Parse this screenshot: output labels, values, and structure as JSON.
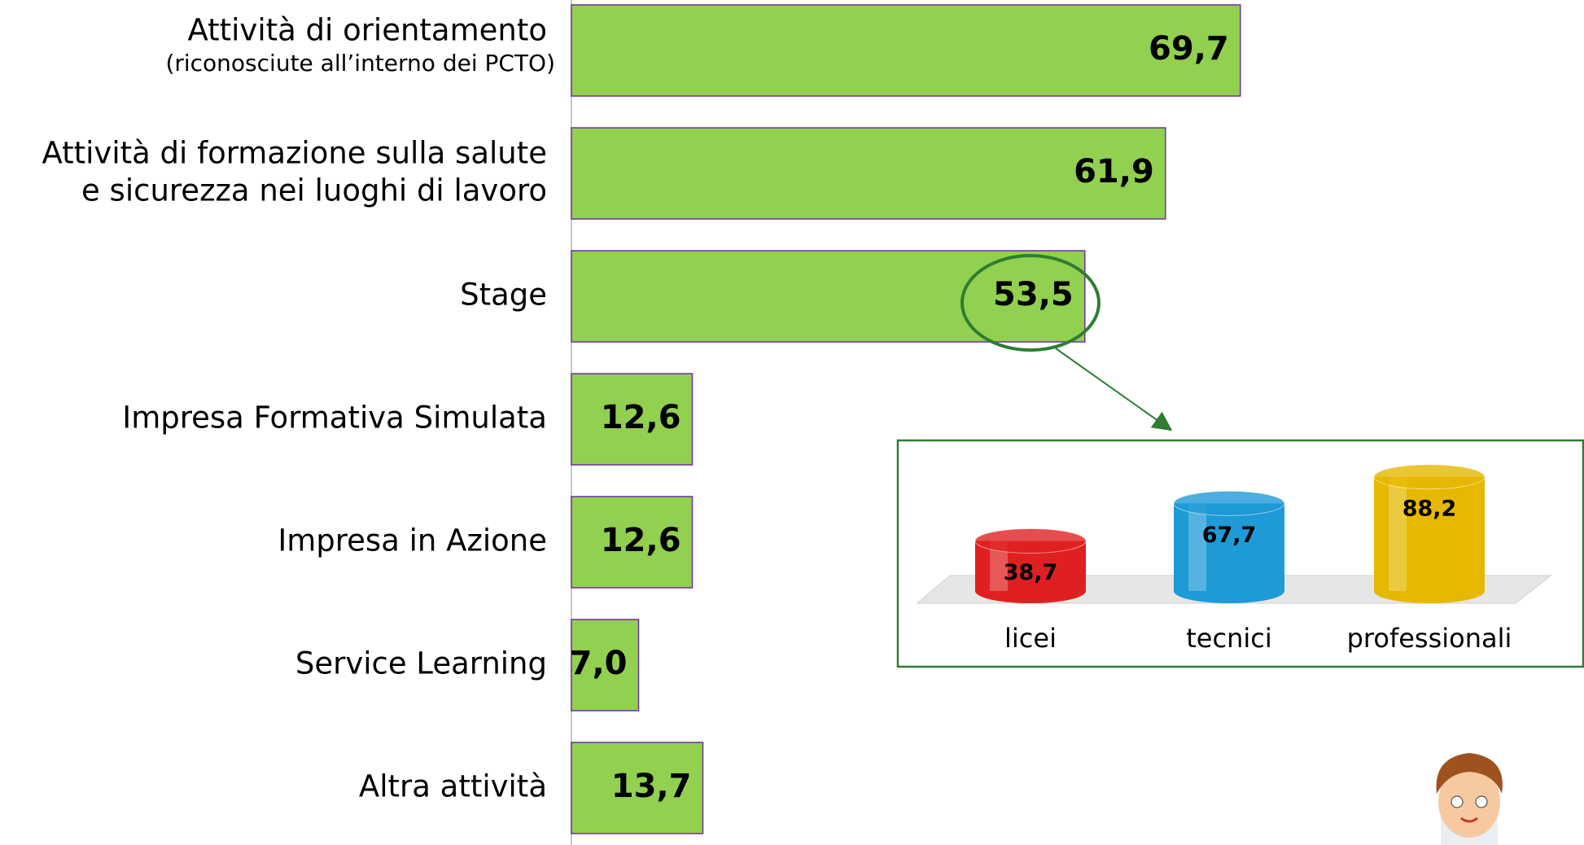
{
  "chart_data": [
    {
      "type": "hbar",
      "categories": [
        [
          "Attività di orientamento"
        ],
        [
          "Attività di formazione sulla salute",
          "e sicurezza nei luoghi di lavoro"
        ],
        [
          "Stage"
        ],
        [
          "Impresa Formativa Simulata"
        ],
        [
          "Impresa in Azione"
        ],
        [
          "Service Learning"
        ],
        [
          "Altra attività"
        ]
      ],
      "category_notes": [
        "(riconosciute all’interno dei PCTO)",
        null,
        null,
        null,
        null,
        null,
        null
      ],
      "values": [
        69.7,
        61.9,
        53.5,
        12.6,
        12.6,
        7.0,
        13.7
      ],
      "value_labels": [
        "69,7",
        "61,9",
        "53,5",
        "12,6",
        "12,6",
        "7,0",
        "13,7"
      ],
      "color": "#92d050",
      "xlim": [
        0,
        100
      ]
    },
    {
      "type": "cylinder",
      "categories": [
        "licei",
        "tecnici",
        "professionali"
      ],
      "values": [
        38.7,
        67.7,
        88.2
      ],
      "value_labels": [
        "38,7",
        "67,7",
        "88,2"
      ],
      "colors": [
        "#e02020",
        "#1e9ad6",
        "#e6b800"
      ],
      "ylim": [
        0,
        100
      ]
    }
  ]
}
